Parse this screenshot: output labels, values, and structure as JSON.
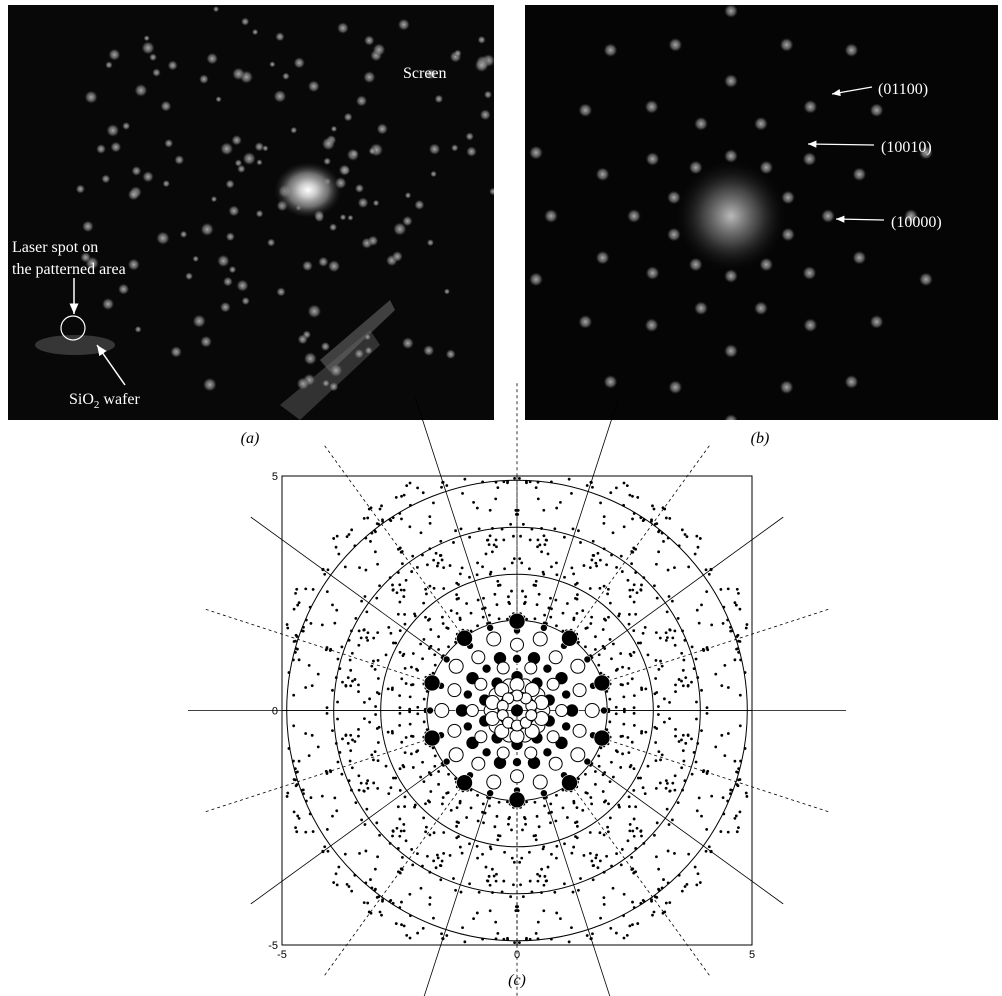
{
  "panel_a": {
    "screen_label": "Screen",
    "laser_label": [
      "Laser spot on",
      "the patterned area"
    ],
    "wafer_label": [
      "SiO",
      "2",
      " wafer"
    ],
    "caption": "(a)"
  },
  "panel_b": {
    "labels": [
      "(01100)",
      "(10010)",
      "(10000)"
    ],
    "caption": "(b)"
  },
  "panel_c": {
    "xlim": [
      -5,
      5
    ],
    "ylim": [
      -5,
      5
    ],
    "xticks": [
      -5,
      0,
      5
    ],
    "yticks": [
      -5,
      0,
      5
    ],
    "caption": "(c)"
  }
}
